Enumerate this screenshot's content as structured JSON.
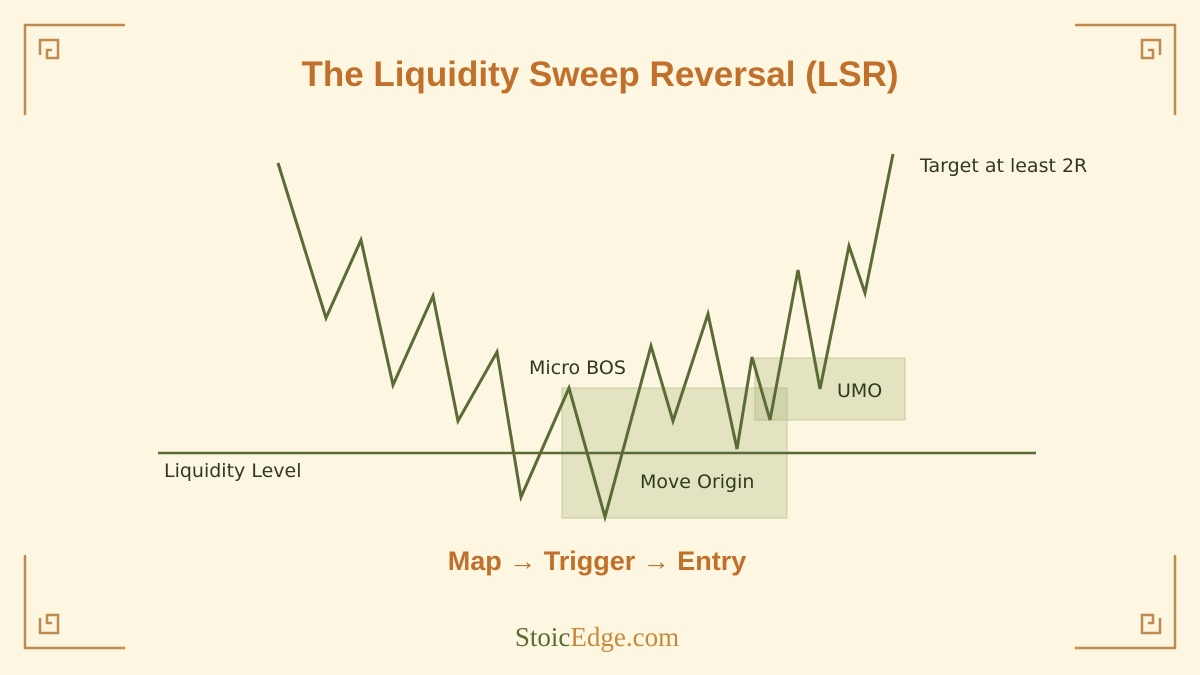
{
  "header": {
    "title": "The Liquidity Sweep Reversal (LSR)"
  },
  "labels": {
    "target": "Target at least 2R",
    "micro_bos": "Micro BOS",
    "umo": "UMO",
    "liquidity_level": "Liquidity Level",
    "move_origin": "Move Origin"
  },
  "flow": "Map → Trigger → Entry",
  "brand": {
    "part1": "Stoic",
    "part2": "Edge.com"
  }
}
